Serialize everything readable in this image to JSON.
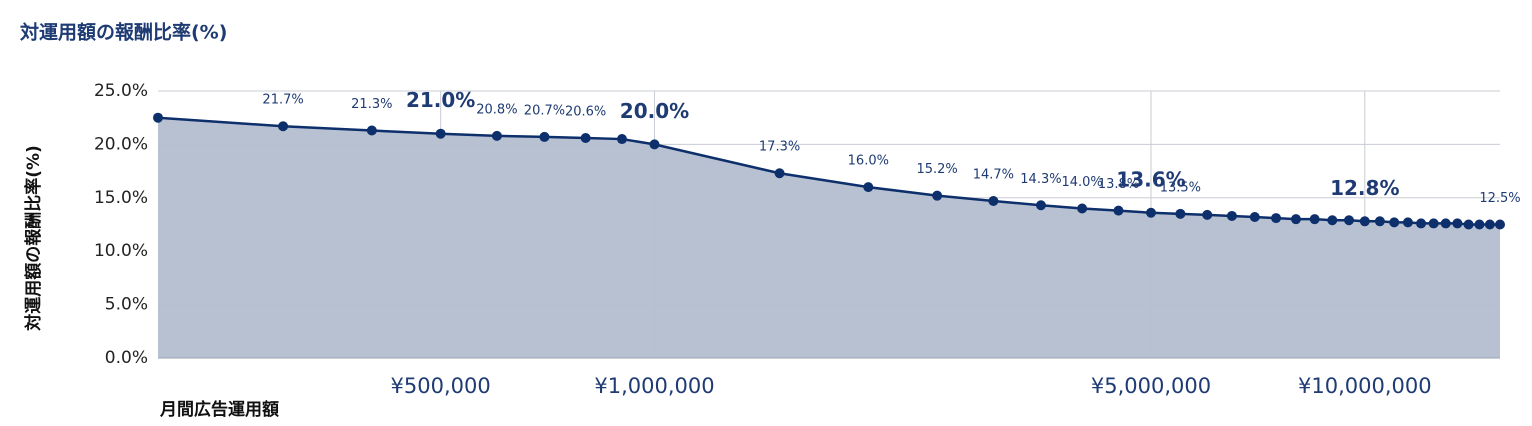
{
  "chart_data": {
    "type": "area",
    "title": "対運用額の報酬比率(%)",
    "ylabel": "対運用額の報酬比率(%)",
    "xlabel": "月間広告運用額",
    "x": [
      200000,
      300000,
      400000,
      500000,
      600000,
      700000,
      800000,
      900000,
      1000000,
      1500000,
      2000000,
      2500000,
      3000000,
      3500000,
      4000000,
      4500000,
      5000000,
      5500000,
      6000000,
      6500000,
      7000000,
      7500000,
      8000000,
      8500000,
      9000000,
      9500000,
      10000000,
      10500000,
      11000000,
      11500000,
      12000000,
      12500000,
      13000000,
      13500000,
      14000000,
      14500000,
      15000000,
      15500000
    ],
    "values": [
      22.5,
      21.7,
      21.3,
      21.0,
      20.8,
      20.7,
      20.6,
      20.5,
      20.0,
      17.3,
      16.0,
      15.2,
      14.7,
      14.3,
      14.0,
      13.8,
      13.6,
      13.5,
      13.4,
      13.3,
      13.2,
      13.1,
      13.0,
      13.0,
      12.9,
      12.9,
      12.8,
      12.8,
      12.7,
      12.7,
      12.6,
      12.6,
      12.6,
      12.6,
      12.5,
      12.5,
      12.5,
      12.5
    ],
    "value_labels": [
      null,
      "21.7%",
      "21.3%",
      "21.0%",
      "20.8%",
      "20.7%",
      "20.6%",
      null,
      "20.0%",
      "17.3%",
      "16.0%",
      "15.2%",
      "14.7%",
      "14.3%",
      "14.0%",
      "13.8%",
      "13.6%",
      "13.5%",
      null,
      null,
      null,
      null,
      null,
      null,
      null,
      null,
      "12.8%",
      null,
      null,
      null,
      null,
      null,
      null,
      null,
      null,
      null,
      null,
      "12.5%"
    ],
    "highlight_points": [
      3,
      8,
      16,
      26
    ],
    "line_color": "#0d2f6b",
    "fill_color": "#b4bed0",
    "xscale": "log",
    "xlim": [
      200000,
      15500000
    ],
    "xticks": [
      {
        "value": 500000,
        "label": "¥500,000"
      },
      {
        "value": 1000000,
        "label": "¥1,000,000"
      },
      {
        "value": 5000000,
        "label": "¥5,000,000"
      },
      {
        "value": 10000000,
        "label": "¥10,000,000"
      }
    ],
    "ylim": [
      0,
      25
    ],
    "yticks": [
      {
        "value": 0,
        "label": "0.0%"
      },
      {
        "value": 5,
        "label": "5.0%"
      },
      {
        "value": 10,
        "label": "10.0%"
      },
      {
        "value": 15,
        "label": "15.0%"
      },
      {
        "value": 20,
        "label": "20.0%"
      },
      {
        "value": 25,
        "label": "25.0%"
      }
    ],
    "grid": true
  }
}
